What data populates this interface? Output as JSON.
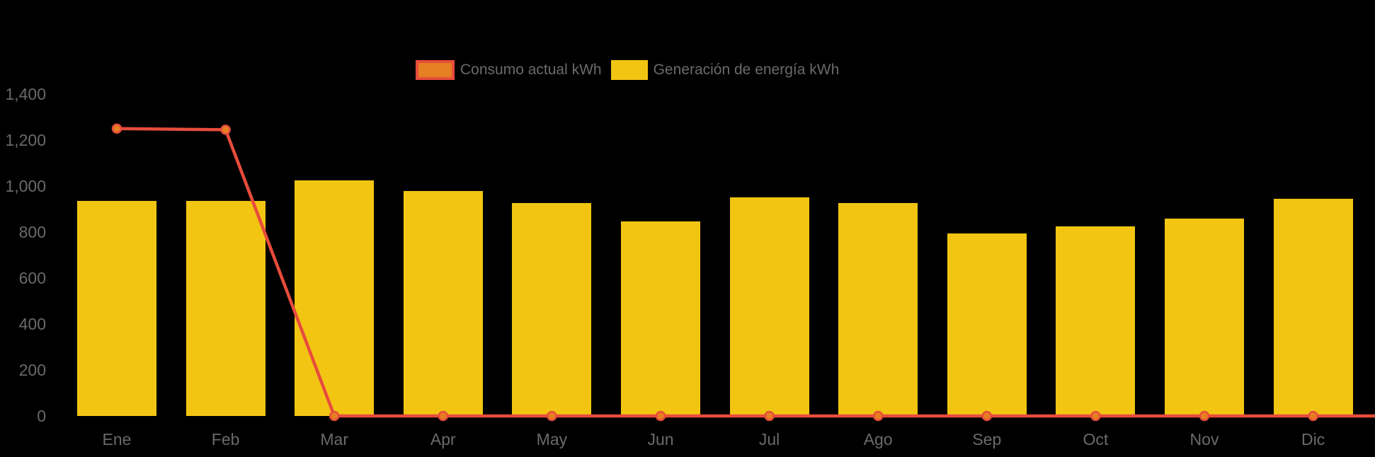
{
  "chart_data": {
    "type": "bar",
    "subtype": "bar-with-line-overlay",
    "categories": [
      "Ene",
      "Feb",
      "Mar",
      "Apr",
      "May",
      "Jun",
      "Jul",
      "Ago",
      "Sep",
      "Oct",
      "Nov",
      "Dic"
    ],
    "series": [
      {
        "name": "Consumo actual kWh",
        "type": "line",
        "color": "#E74C3C",
        "point_color": "#E67E22",
        "values": [
          1250,
          1245,
          0,
          0,
          0,
          0,
          0,
          0,
          0,
          0,
          0,
          0
        ]
      },
      {
        "name": "Generación de energía kWh",
        "type": "bar",
        "color": "#F2C512",
        "values": [
          935,
          935,
          1025,
          980,
          925,
          845,
          950,
          925,
          795,
          825,
          860,
          945
        ]
      }
    ],
    "xlabel": "",
    "ylabel": "",
    "ylim": [
      0,
      1400
    ],
    "y_ticks": [
      "0",
      "200",
      "400",
      "600",
      "800",
      "1,000",
      "1,200",
      "1,400"
    ],
    "grid": false,
    "axis_lines": false,
    "legend_position": "top",
    "line_extends_to_right_edge": true,
    "text_color": "#6A6A6A",
    "background": "#000000"
  }
}
